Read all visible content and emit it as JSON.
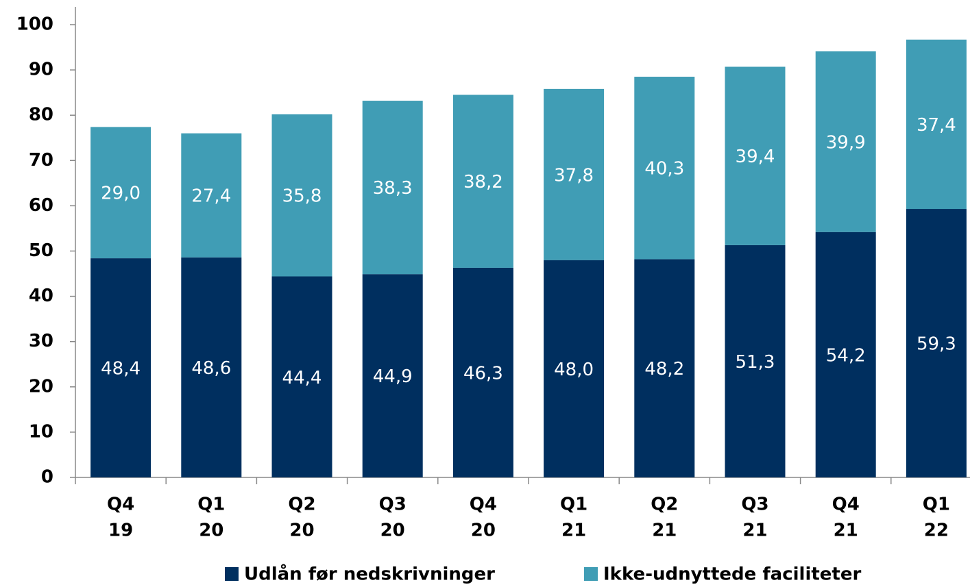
{
  "chart_data": {
    "type": "stacked_bar",
    "categories": [
      [
        "Q4",
        "19"
      ],
      [
        "Q1",
        "20"
      ],
      [
        "Q2",
        "20"
      ],
      [
        "Q3",
        "20"
      ],
      [
        "Q4",
        "20"
      ],
      [
        "Q1",
        "21"
      ],
      [
        "Q2",
        "21"
      ],
      [
        "Q3",
        "21"
      ],
      [
        "Q4",
        "21"
      ],
      [
        "Q1",
        "22"
      ]
    ],
    "series": [
      {
        "name": "Udlån før nedskrivninger",
        "color": "#002f5f",
        "values": [
          48.4,
          48.6,
          44.4,
          44.9,
          46.3,
          48.0,
          48.2,
          51.3,
          54.2,
          59.3
        ],
        "value_labels": [
          "48,4",
          "48,6",
          "44,4",
          "44,9",
          "46,3",
          "48,0",
          "48,2",
          "51,3",
          "54,2",
          "59,3"
        ]
      },
      {
        "name": "Ikke-udnyttede faciliteter",
        "color": "#409db5",
        "values": [
          29.0,
          27.4,
          35.8,
          38.3,
          38.2,
          37.8,
          40.3,
          39.4,
          39.9,
          37.4
        ],
        "value_labels": [
          "29,0",
          "27,4",
          "35,8",
          "38,3",
          "38,2",
          "37,8",
          "40,3",
          "39,4",
          "39,9",
          "37,4"
        ]
      }
    ],
    "ylim": [
      0,
      100
    ],
    "yticks": [
      0,
      10,
      20,
      30,
      40,
      50,
      60,
      70,
      80,
      90,
      100
    ],
    "grid": false,
    "legend": "bottom"
  }
}
